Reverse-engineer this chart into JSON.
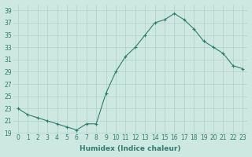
{
  "x": [
    0,
    1,
    2,
    3,
    4,
    5,
    6,
    7,
    8,
    9,
    10,
    11,
    12,
    13,
    14,
    15,
    16,
    17,
    18,
    19,
    20,
    21,
    22,
    23
  ],
  "y": [
    23,
    22,
    21.5,
    21,
    20.5,
    20,
    19.5,
    20.5,
    20.5,
    25.5,
    29,
    31.5,
    33,
    35,
    37,
    37.5,
    38.5,
    37.5,
    36,
    34,
    33,
    32,
    30,
    29.5
  ],
  "line_color": "#2e7d6e",
  "marker": "+",
  "marker_size": 3,
  "marker_lw": 0.8,
  "line_width": 0.8,
  "bg_color": "#cde8e0",
  "grid_color": "#aed0c8",
  "xlabel": "Humidex (Indice chaleur)",
  "xlim": [
    -0.5,
    23.5
  ],
  "ylim": [
    19,
    40
  ],
  "yticks": [
    19,
    21,
    23,
    25,
    27,
    29,
    31,
    33,
    35,
    37,
    39
  ],
  "xticks": [
    0,
    1,
    2,
    3,
    4,
    5,
    6,
    7,
    8,
    9,
    10,
    11,
    12,
    13,
    14,
    15,
    16,
    17,
    18,
    19,
    20,
    21,
    22,
    23
  ],
  "tick_fontsize": 5.5,
  "xlabel_fontsize": 6.5,
  "xlabel_fontweight": "bold"
}
